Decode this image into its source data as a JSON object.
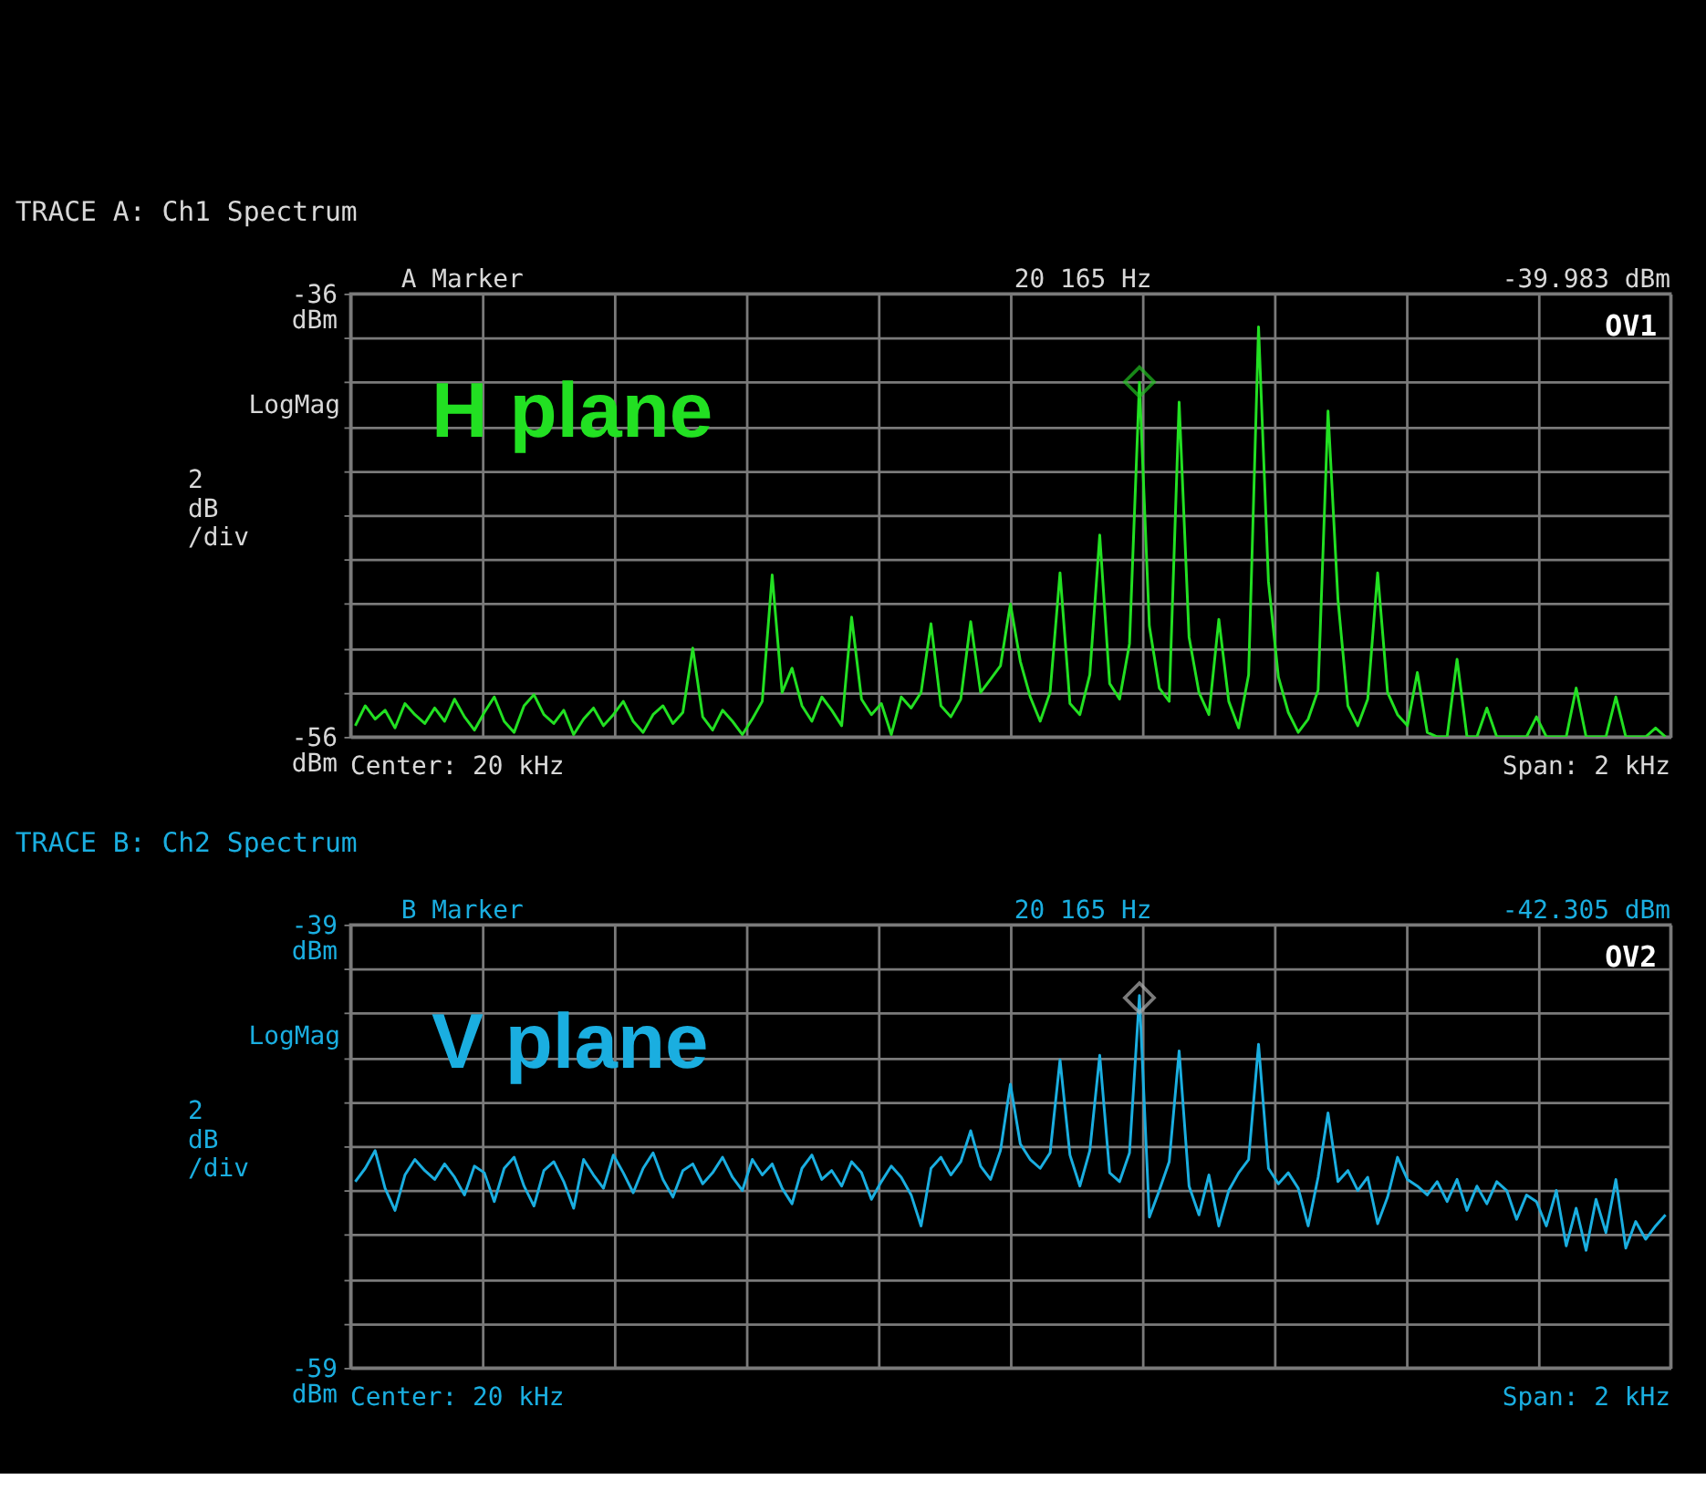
{
  "chart_data": [
    {
      "type": "line",
      "title": "TRACE A: Ch1 Spectrum",
      "ylabel": "LogMag",
      "annotations": [
        "A Marker",
        "20 165 Hz",
        "-39.983 dBm",
        "OV1",
        "2 dB /div",
        "Center: 20 kHz",
        "Span: 2 kHz"
      ],
      "categories": [
        null,
        null,
        null,
        null,
        null,
        null,
        null,
        null,
        null,
        null,
        null,
        null,
        null,
        null,
        null,
        null,
        null,
        null,
        null,
        null,
        null,
        null,
        null,
        null,
        null,
        null,
        null,
        null,
        null,
        null,
        null,
        null,
        null,
        null,
        null,
        null,
        null,
        null,
        null,
        null,
        null,
        null,
        null,
        null,
        null,
        null,
        null,
        null,
        null,
        null,
        null,
        null,
        null,
        null,
        null,
        null,
        null,
        null,
        null,
        null,
        null,
        null,
        null,
        null,
        null,
        null,
        null,
        null,
        null,
        null,
        null,
        null,
        null,
        null,
        null,
        null,
        null,
        null,
        null,
        null,
        null,
        null,
        null,
        null,
        null,
        null,
        null,
        null,
        null,
        null,
        null,
        null,
        null,
        null,
        null,
        null,
        null,
        null,
        null,
        null,
        null,
        null,
        null,
        null,
        null,
        null,
        null,
        null,
        null,
        null,
        null,
        null,
        null,
        null,
        null,
        null,
        null,
        null,
        null,
        null,
        null,
        null,
        null,
        null,
        null,
        null,
        null,
        null,
        null,
        null,
        null,
        null,
        null
      ],
      "series": [
        {
          "name": "H plane",
          "color": "#22e022",
          "values": [
            -55.5,
            -54.6,
            -55.2,
            -54.8,
            -55.6,
            -54.5,
            -55.0,
            -55.4,
            -54.7,
            -55.3,
            -54.3,
            -55.1,
            -55.7,
            -54.9,
            -54.2,
            -55.3,
            -55.8,
            -54.6,
            -54.1,
            -55.0,
            -55.4,
            -54.8,
            -55.9,
            -55.2,
            -54.7,
            -55.5,
            -55.0,
            -54.4,
            -55.3,
            -55.8,
            -55.0,
            -54.6,
            -55.4,
            -54.9,
            -52.0,
            -55.1,
            -55.7,
            -54.8,
            -55.3,
            -55.9,
            -55.2,
            -54.4,
            -48.7,
            -54.0,
            -52.9,
            -54.6,
            -55.3,
            -54.2,
            -54.8,
            -55.5,
            -50.6,
            -54.3,
            -55.0,
            -54.5,
            -55.9,
            -54.2,
            -54.7,
            -54.0,
            -50.9,
            -54.6,
            -55.1,
            -54.3,
            -50.8,
            -54.0,
            -53.4,
            -52.8,
            -50.0,
            -52.6,
            -54.2,
            -55.3,
            -54.0,
            -48.6,
            -54.5,
            -55.0,
            -53.2,
            -46.9,
            -53.6,
            -54.3,
            -51.8,
            -40.0,
            -51.0,
            -53.8,
            -54.4,
            -40.9,
            -51.5,
            -54.0,
            -55.0,
            -50.7,
            -54.4,
            -55.6,
            -53.2,
            -37.5,
            -49.0,
            -53.3,
            -54.9,
            -55.8,
            -55.2,
            -53.9,
            -41.3,
            -49.8,
            -54.6,
            -55.5,
            -54.3,
            -48.6,
            -54.0,
            -55.0,
            -55.5,
            -53.1,
            -55.8,
            -56.0,
            -56.0,
            -52.5,
            -56.0,
            -56.0,
            -54.7,
            -56.0,
            -56.0,
            -56.0,
            -56.0,
            -55.1,
            -56.0,
            -56.0,
            -56.0,
            -53.8,
            -56.0,
            -56.0,
            -56.0,
            -54.2,
            -56.0,
            -56.0,
            -56.0,
            -55.6,
            -56.0
          ]
        },
        {
          "type": "scatter",
          "marker": "diamond",
          "color": "#22c022",
          "values": [
            null,
            null,
            null,
            null,
            null,
            null,
            null,
            null,
            null,
            null,
            null,
            null,
            null,
            null,
            null,
            null,
            null,
            null,
            null,
            null,
            null,
            null,
            null,
            null,
            null,
            null,
            null,
            null,
            null,
            null,
            null,
            null,
            null,
            null,
            null,
            null,
            null,
            null,
            null,
            null,
            null,
            null,
            null,
            null,
            null,
            null,
            null,
            null,
            null,
            null,
            null,
            null,
            null,
            null,
            null,
            null,
            null,
            null,
            null,
            null,
            null,
            null,
            null,
            null,
            null,
            null,
            null,
            null,
            null,
            null,
            null,
            null,
            null,
            null,
            null,
            null,
            null,
            null,
            null,
            -39.983,
            null,
            null,
            null,
            null,
            null,
            null,
            null,
            null,
            null,
            null,
            null,
            null,
            null,
            null,
            null,
            null,
            null,
            null,
            null,
            null,
            null,
            null,
            null,
            null,
            null,
            null,
            null,
            null,
            null,
            null,
            null,
            null,
            null,
            null,
            null,
            null,
            null,
            null,
            null,
            null,
            null,
            null,
            null,
            null,
            null,
            null,
            null,
            null,
            null,
            null,
            null,
            null,
            null
          ]
        }
      ],
      "ylim": [
        -56,
        -36
      ],
      "yticks": [
        {
          "value": -56,
          "label": "-56 dBm"
        },
        {
          "value": -54,
          "label": null
        },
        {
          "value": -52,
          "label": null
        },
        {
          "value": -50,
          "label": null
        },
        {
          "value": -48,
          "label": null
        },
        {
          "value": -46,
          "label": null
        },
        {
          "value": -44,
          "label": null
        },
        {
          "value": -42,
          "label": null
        },
        {
          "value": -40,
          "label": null
        },
        {
          "value": -38,
          "label": null
        },
        {
          "value": -36,
          "label": "-36 dBm"
        }
      ],
      "tick_labels": "y",
      "grid": true
    },
    {
      "type": "line",
      "title": "TRACE B: Ch2 Spectrum",
      "ylabel": "LogMag",
      "annotations": [
        "B Marker",
        "20 165 Hz",
        "-42.305 dBm",
        "OV2",
        "2 dB /div",
        "Center: 20 kHz",
        "Span: 2 kHz"
      ],
      "categories": [
        null,
        null,
        null,
        null,
        null,
        null,
        null,
        null,
        null,
        null,
        null,
        null,
        null,
        null,
        null,
        null,
        null,
        null,
        null,
        null,
        null,
        null,
        null,
        null,
        null,
        null,
        null,
        null,
        null,
        null,
        null,
        null,
        null,
        null,
        null,
        null,
        null,
        null,
        null,
        null,
        null,
        null,
        null,
        null,
        null,
        null,
        null,
        null,
        null,
        null,
        null,
        null,
        null,
        null,
        null,
        null,
        null,
        null,
        null,
        null,
        null,
        null,
        null,
        null,
        null,
        null,
        null,
        null,
        null,
        null,
        null,
        null,
        null,
        null,
        null,
        null,
        null,
        null,
        null,
        null,
        null,
        null,
        null,
        null,
        null,
        null,
        null,
        null,
        null,
        null,
        null,
        null,
        null,
        null,
        null,
        null,
        null,
        null,
        null,
        null,
        null,
        null,
        null,
        null,
        null,
        null,
        null,
        null,
        null,
        null,
        null,
        null,
        null,
        null,
        null,
        null,
        null,
        null,
        null,
        null,
        null,
        null,
        null,
        null,
        null,
        null,
        null,
        null,
        null,
        null,
        null,
        null,
        null
      ],
      "series": [
        {
          "name": "V plane",
          "color": "#1aaee0",
          "values": [
            -50.6,
            -50.0,
            -49.2,
            -50.9,
            -51.9,
            -50.3,
            -49.6,
            -50.1,
            -50.5,
            -49.8,
            -50.4,
            -51.2,
            -49.9,
            -50.2,
            -51.5,
            -50.0,
            -49.5,
            -50.8,
            -51.7,
            -50.1,
            -49.7,
            -50.6,
            -51.8,
            -49.6,
            -50.3,
            -50.9,
            -49.4,
            -50.2,
            -51.1,
            -50.0,
            -49.3,
            -50.5,
            -51.3,
            -50.1,
            -49.8,
            -50.7,
            -50.2,
            -49.5,
            -50.4,
            -51.0,
            -49.6,
            -50.3,
            -49.8,
            -50.9,
            -51.6,
            -50.0,
            -49.4,
            -50.5,
            -50.1,
            -50.8,
            -49.7,
            -50.2,
            -51.4,
            -50.6,
            -49.9,
            -50.4,
            -51.2,
            -52.6,
            -50.0,
            -49.5,
            -50.3,
            -49.7,
            -48.3,
            -49.9,
            -50.5,
            -49.2,
            -46.2,
            -48.9,
            -49.6,
            -50.0,
            -49.3,
            -45.1,
            -49.4,
            -50.8,
            -49.2,
            -44.9,
            -50.2,
            -50.6,
            -49.3,
            -42.2,
            -52.2,
            -51.0,
            -49.7,
            -44.7,
            -50.8,
            -52.1,
            -50.3,
            -52.6,
            -51.0,
            -50.2,
            -49.6,
            -44.4,
            -50.0,
            -50.7,
            -50.2,
            -50.9,
            -52.6,
            -50.4,
            -47.5,
            -50.6,
            -50.1,
            -51.0,
            -50.4,
            -52.5,
            -51.3,
            -49.5,
            -50.5,
            -50.8,
            -51.2,
            -50.6,
            -51.5,
            -50.5,
            -51.9,
            -50.8,
            -51.6,
            -50.6,
            -51.0,
            -52.3,
            -51.2,
            -51.5,
            -52.6,
            -51.0,
            -53.5,
            -51.8,
            -53.7,
            -51.4,
            -52.9,
            -50.5,
            -53.6,
            -52.4,
            -53.2,
            -52.6,
            -52.1
          ]
        },
        {
          "type": "scatter",
          "marker": "diamond",
          "color": "#b0b0b0",
          "values": [
            null,
            null,
            null,
            null,
            null,
            null,
            null,
            null,
            null,
            null,
            null,
            null,
            null,
            null,
            null,
            null,
            null,
            null,
            null,
            null,
            null,
            null,
            null,
            null,
            null,
            null,
            null,
            null,
            null,
            null,
            null,
            null,
            null,
            null,
            null,
            null,
            null,
            null,
            null,
            null,
            null,
            null,
            null,
            null,
            null,
            null,
            null,
            null,
            null,
            null,
            null,
            null,
            null,
            null,
            null,
            null,
            null,
            null,
            null,
            null,
            null,
            null,
            null,
            null,
            null,
            null,
            null,
            null,
            null,
            null,
            null,
            null,
            null,
            null,
            null,
            null,
            null,
            null,
            null,
            -42.305,
            null,
            null,
            null,
            null,
            null,
            null,
            null,
            null,
            null,
            null,
            null,
            null,
            null,
            null,
            null,
            null,
            null,
            null,
            null,
            null,
            null,
            null,
            null,
            null,
            null,
            null,
            null,
            null,
            null,
            null,
            null,
            null,
            null,
            null,
            null,
            null,
            null,
            null,
            null,
            null,
            null,
            null,
            null,
            null,
            null,
            null,
            null,
            null,
            null,
            null,
            null,
            null,
            null
          ]
        }
      ],
      "ylim": [
        -59,
        -39
      ],
      "yticks": [
        {
          "value": -59,
          "label": "-59 dBm"
        },
        {
          "value": -57,
          "label": null
        },
        {
          "value": -55,
          "label": null
        },
        {
          "value": -53,
          "label": null
        },
        {
          "value": -51,
          "label": null
        },
        {
          "value": -49,
          "label": null
        },
        {
          "value": -47,
          "label": null
        },
        {
          "value": -45,
          "label": null
        },
        {
          "value": -43,
          "label": null
        },
        {
          "value": -41,
          "label": null
        },
        {
          "value": -39,
          "label": "-39 dBm"
        }
      ],
      "tick_labels": "y",
      "grid": true
    }
  ]
}
